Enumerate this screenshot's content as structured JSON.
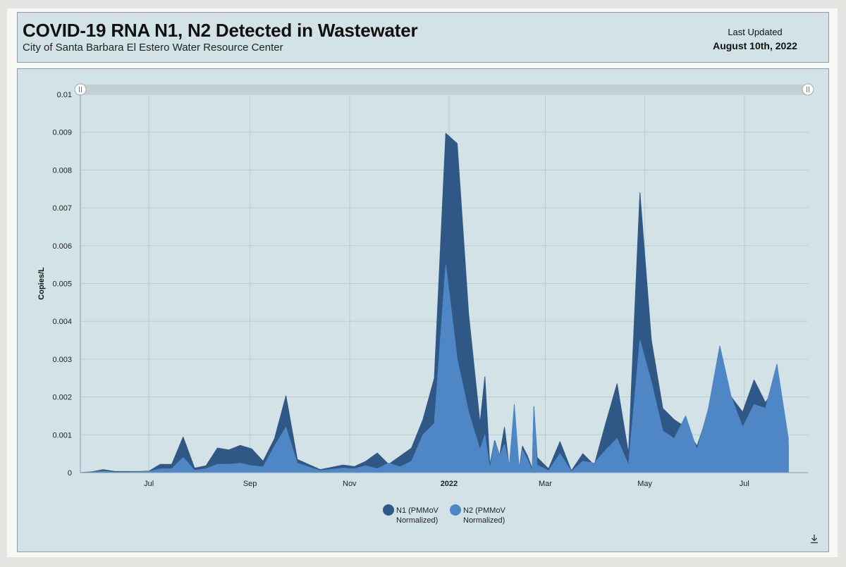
{
  "header": {
    "title": "COVID-19 RNA N1, N2 Detected in Wastewater",
    "subtitle": "City of Santa Barbara El Estero Water Resource Center",
    "updated_label": "Last Updated",
    "updated_date": "August 10th, 2022"
  },
  "colors": {
    "n1": "#2f5886",
    "n2": "#4f86c6",
    "panel_bg": "#d2e2e6",
    "grid": "#b9cdd2"
  },
  "icons": {
    "download": "download-icon",
    "range_handle": "range-handle-icon"
  },
  "chart_data": {
    "type": "area",
    "title": "COVID-19 RNA N1, N2 Detected in Wastewater",
    "ylabel": "Copies/L",
    "xlabel": "",
    "xlim": [
      "2021-05-20",
      "2022-08-09"
    ],
    "ylim": [
      0,
      0.01
    ],
    "yticks": [
      0,
      0.001,
      0.002,
      0.003,
      0.004,
      0.005,
      0.006,
      0.007,
      0.008,
      0.009,
      0.01
    ],
    "ytick_labels": [
      "0",
      "0.001",
      "0.002",
      "0.003",
      "0.004",
      "0.005",
      "0.006",
      "0.007",
      "0.008",
      "0.009",
      "0.01"
    ],
    "xticks": [
      {
        "date": "2021-07-01",
        "label": "Jul",
        "bold": false
      },
      {
        "date": "2021-09-01",
        "label": "Sep",
        "bold": false
      },
      {
        "date": "2021-11-01",
        "label": "Nov",
        "bold": false
      },
      {
        "date": "2022-01-01",
        "label": "2022",
        "bold": true
      },
      {
        "date": "2022-03-01",
        "label": "Mar",
        "bold": false
      },
      {
        "date": "2022-05-01",
        "label": "May",
        "bold": false
      },
      {
        "date": "2022-07-01",
        "label": "Jul",
        "bold": false
      }
    ],
    "grid": true,
    "legend_position": "bottom-center",
    "series": [
      {
        "name": "N1 (PMMoV Normalized)",
        "legend_lines": [
          "N1 (PMMoV",
          "Normalized)"
        ],
        "color": "#2f5886",
        "points": [
          [
            "2021-05-20",
            0
          ],
          [
            "2021-05-27",
            2e-05
          ],
          [
            "2021-06-03",
            8e-05
          ],
          [
            "2021-06-10",
            3e-05
          ],
          [
            "2021-06-24",
            3e-05
          ],
          [
            "2021-07-01",
            4e-05
          ],
          [
            "2021-07-08",
            0.00022
          ],
          [
            "2021-07-15",
            0.00022
          ],
          [
            "2021-07-22",
            0.00094
          ],
          [
            "2021-07-29",
            0.00012
          ],
          [
            "2021-08-05",
            0.00018
          ],
          [
            "2021-08-12",
            0.00065
          ],
          [
            "2021-08-19",
            0.0006
          ],
          [
            "2021-08-26",
            0.00072
          ],
          [
            "2021-09-02",
            0.00063
          ],
          [
            "2021-09-09",
            0.0003
          ],
          [
            "2021-09-16",
            0.0009
          ],
          [
            "2021-09-23",
            0.00203
          ],
          [
            "2021-09-30",
            0.00035
          ],
          [
            "2021-10-14",
            8e-05
          ],
          [
            "2021-10-28",
            0.0002
          ],
          [
            "2021-11-04",
            0.00016
          ],
          [
            "2021-11-11",
            0.0003
          ],
          [
            "2021-11-18",
            0.00052
          ],
          [
            "2021-11-25",
            0.00022
          ],
          [
            "2021-12-09",
            0.00065
          ],
          [
            "2021-12-16",
            0.0014
          ],
          [
            "2021-12-23",
            0.0025
          ],
          [
            "2021-12-30",
            0.00897
          ],
          [
            "2022-01-06",
            0.0087
          ],
          [
            "2022-01-13",
            0.0042
          ],
          [
            "2022-01-20",
            0.0013
          ],
          [
            "2022-01-23",
            0.00253
          ],
          [
            "2022-01-26",
            0.0002
          ],
          [
            "2022-01-29",
            0.00085
          ],
          [
            "2022-02-01",
            0.00045
          ],
          [
            "2022-02-04",
            0.0012
          ],
          [
            "2022-02-07",
            0.0001
          ],
          [
            "2022-02-10",
            0.0015
          ],
          [
            "2022-02-13",
            0.0001
          ],
          [
            "2022-02-15",
            0.0007
          ],
          [
            "2022-02-18",
            0.00045
          ],
          [
            "2022-02-21",
            0.0001
          ],
          [
            "2022-02-22",
            0.00175
          ],
          [
            "2022-02-24",
            0.0004
          ],
          [
            "2022-03-03",
            0.0001
          ],
          [
            "2022-03-10",
            0.00082
          ],
          [
            "2022-03-17",
            5e-05
          ],
          [
            "2022-03-24",
            0.0005
          ],
          [
            "2022-03-31",
            0.0002
          ],
          [
            "2022-04-07",
            0.0013
          ],
          [
            "2022-04-14",
            0.00235
          ],
          [
            "2022-04-21",
            0.0005
          ],
          [
            "2022-04-28",
            0.0074
          ],
          [
            "2022-05-05",
            0.0035
          ],
          [
            "2022-05-12",
            0.0017
          ],
          [
            "2022-05-19",
            0.0014
          ],
          [
            "2022-05-26",
            0.0012
          ],
          [
            "2022-06-02",
            0.0007
          ],
          [
            "2022-06-09",
            0.0016
          ],
          [
            "2022-06-16",
            0.0023
          ],
          [
            "2022-06-23",
            0.002
          ],
          [
            "2022-06-30",
            0.0016
          ],
          [
            "2022-07-07",
            0.00245
          ],
          [
            "2022-07-14",
            0.00185
          ],
          [
            "2022-07-21",
            0.00235
          ],
          [
            "2022-07-28",
            0.00075
          ]
        ]
      },
      {
        "name": "N2 (PMMoV Normalized)",
        "legend_lines": [
          "N2 (PMMoV",
          "Normalized)"
        ],
        "color": "#4f86c6",
        "points": [
          [
            "2021-05-20",
            0
          ],
          [
            "2021-05-27",
            1e-05
          ],
          [
            "2021-06-03",
            4e-05
          ],
          [
            "2021-06-10",
            1e-05
          ],
          [
            "2021-06-24",
            2e-05
          ],
          [
            "2021-07-01",
            3e-05
          ],
          [
            "2021-07-08",
            0.0001
          ],
          [
            "2021-07-15",
            0.0001
          ],
          [
            "2021-07-22",
            0.0004
          ],
          [
            "2021-07-29",
            6e-05
          ],
          [
            "2021-08-05",
            0.0001
          ],
          [
            "2021-08-12",
            0.00022
          ],
          [
            "2021-08-19",
            0.00022
          ],
          [
            "2021-08-26",
            0.00025
          ],
          [
            "2021-09-02",
            0.00018
          ],
          [
            "2021-09-09",
            0.00015
          ],
          [
            "2021-09-16",
            0.0007
          ],
          [
            "2021-09-23",
            0.0012
          ],
          [
            "2021-09-30",
            0.00025
          ],
          [
            "2021-10-14",
            5e-05
          ],
          [
            "2021-10-28",
            0.00012
          ],
          [
            "2021-11-04",
            0.0001
          ],
          [
            "2021-11-11",
            0.00018
          ],
          [
            "2021-11-18",
            0.0001
          ],
          [
            "2021-11-25",
            0.00025
          ],
          [
            "2021-12-02",
            0.00015
          ],
          [
            "2021-12-09",
            0.0003
          ],
          [
            "2021-12-16",
            0.001
          ],
          [
            "2021-12-23",
            0.0013
          ],
          [
            "2021-12-30",
            0.0055
          ],
          [
            "2022-01-06",
            0.003
          ],
          [
            "2022-01-13",
            0.0016
          ],
          [
            "2022-01-20",
            0.0006
          ],
          [
            "2022-01-23",
            0.001
          ],
          [
            "2022-01-26",
            0.0001
          ],
          [
            "2022-01-29",
            0.0008
          ],
          [
            "2022-02-01",
            0.00045
          ],
          [
            "2022-02-04",
            0.00075
          ],
          [
            "2022-02-07",
            0.0002
          ],
          [
            "2022-02-10",
            0.0018
          ],
          [
            "2022-02-13",
            0.0001
          ],
          [
            "2022-02-15",
            0.0006
          ],
          [
            "2022-02-18",
            0.00035
          ],
          [
            "2022-02-21",
            5e-05
          ],
          [
            "2022-02-22",
            0.00175
          ],
          [
            "2022-02-24",
            0.0002
          ],
          [
            "2022-03-03",
            5e-05
          ],
          [
            "2022-03-10",
            0.0005
          ],
          [
            "2022-03-17",
            3e-05
          ],
          [
            "2022-03-24",
            0.0003
          ],
          [
            "2022-03-31",
            0.00025
          ],
          [
            "2022-04-07",
            0.0006
          ],
          [
            "2022-04-14",
            0.0009
          ],
          [
            "2022-04-21",
            0.0002
          ],
          [
            "2022-04-28",
            0.0035
          ],
          [
            "2022-05-05",
            0.0024
          ],
          [
            "2022-05-12",
            0.0011
          ],
          [
            "2022-05-19",
            0.0009
          ],
          [
            "2022-05-26",
            0.0015
          ],
          [
            "2022-06-02",
            0.0006
          ],
          [
            "2022-06-09",
            0.0017
          ],
          [
            "2022-06-16",
            0.00335
          ],
          [
            "2022-06-23",
            0.002
          ],
          [
            "2022-06-30",
            0.0012
          ],
          [
            "2022-07-07",
            0.0018
          ],
          [
            "2022-07-14",
            0.0017
          ],
          [
            "2022-07-21",
            0.00287
          ],
          [
            "2022-07-28",
            0.0009
          ]
        ]
      }
    ]
  }
}
